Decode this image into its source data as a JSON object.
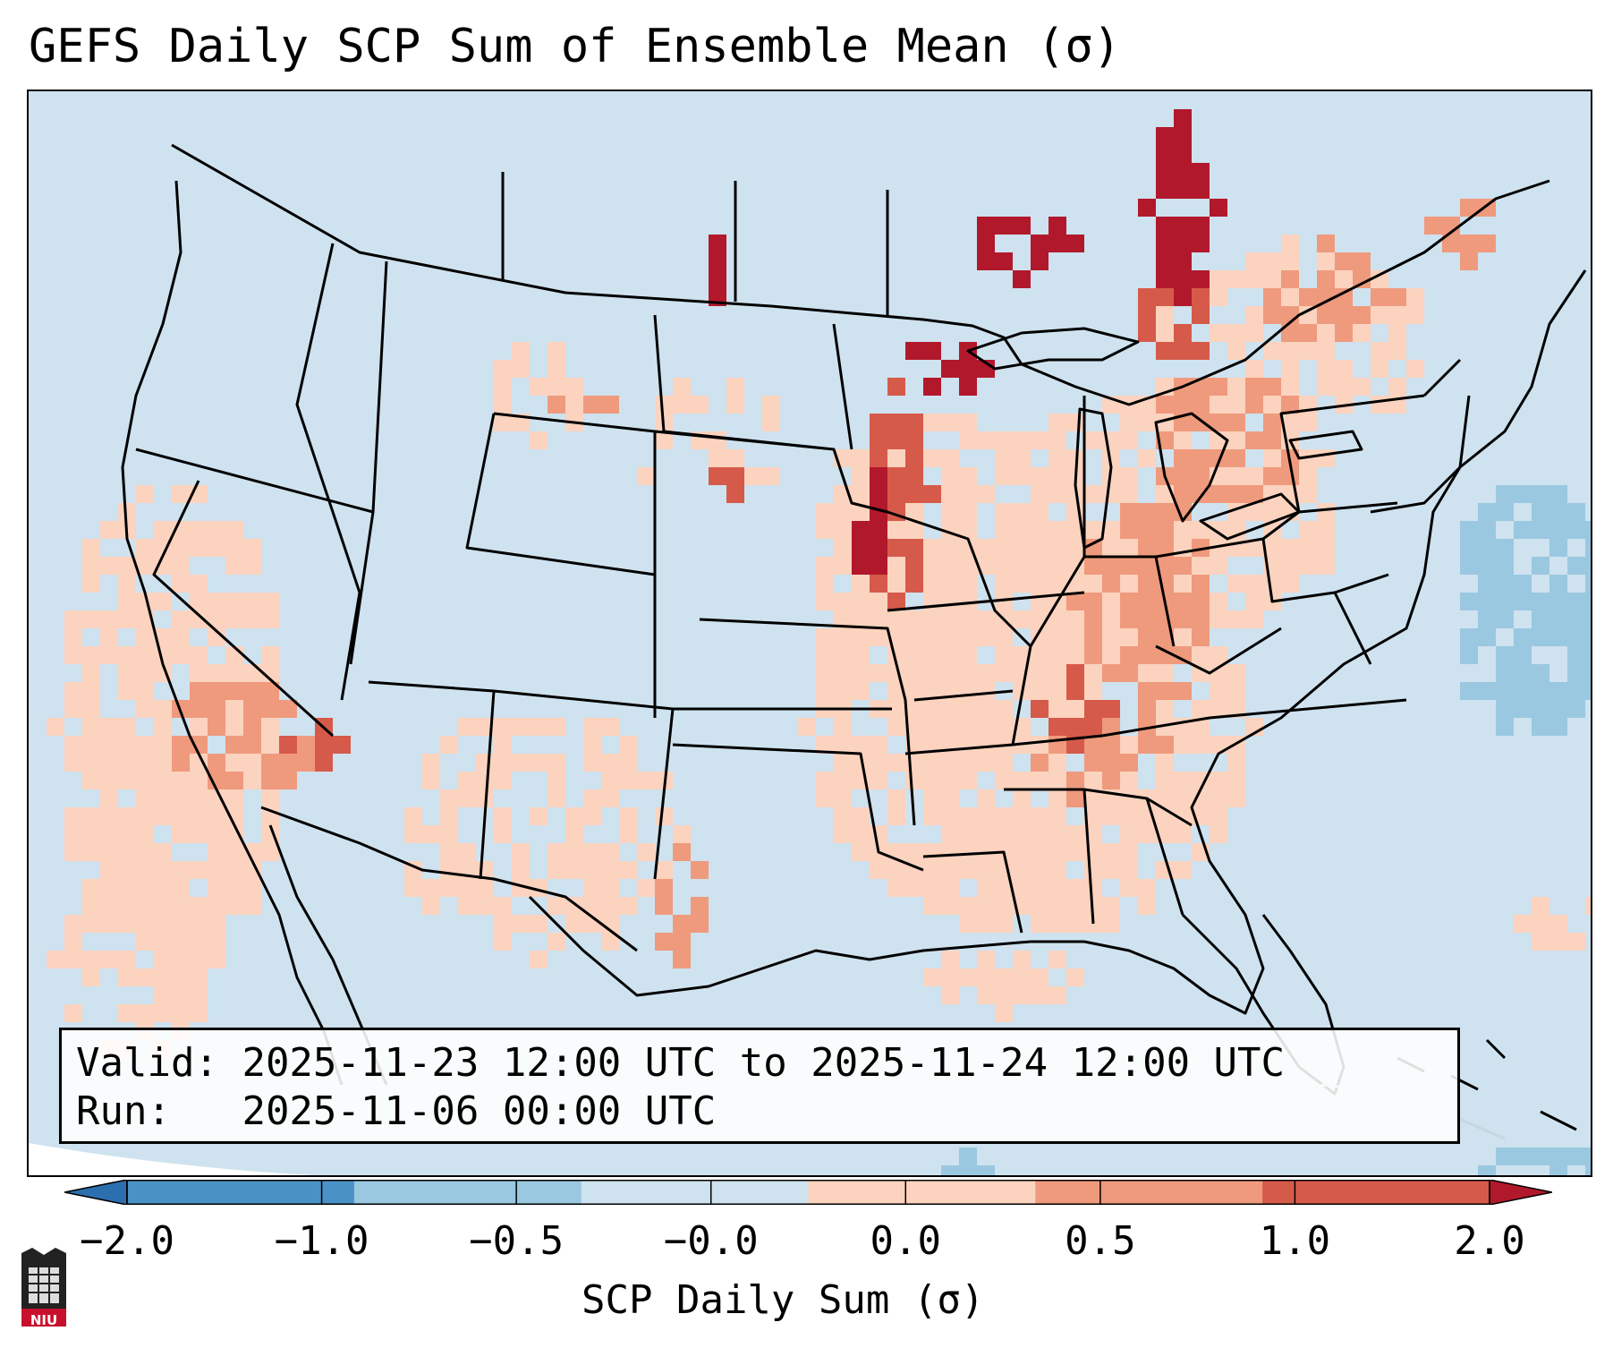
{
  "title": "GEFS Daily SCP Sum of Ensemble Mean (σ)",
  "info": {
    "valid_label": "Valid:",
    "valid_text": "2025-11-23 12:00 UTC to 2025-11-24 12:00 UTC",
    "run_label": "Run:",
    "run_text": "2025-11-06 00:00 UTC"
  },
  "colorbar": {
    "ticks": [
      "−2.0",
      "−1.0",
      "−0.5",
      "−0.0",
      "0.0",
      "0.5",
      "1.0",
      "2.0"
    ],
    "label": "SCP Daily Sum (σ)",
    "colors": [
      "#4a92c6",
      "#9ac8e0",
      "#cfe2ef",
      "#fbd3bf",
      "#ef9a7d",
      "#d65a4a",
      "#b2182b"
    ]
  },
  "logo": {
    "text": "NIU"
  },
  "colors": {
    "background_field": "#cfe2ef",
    "light_positive": "#fbd3bf",
    "moderate_positive": "#ef9a7d",
    "strong_positive": "#d65a4a",
    "extreme_positive": "#b2182b",
    "light_negative": "#9ac8e0"
  }
}
